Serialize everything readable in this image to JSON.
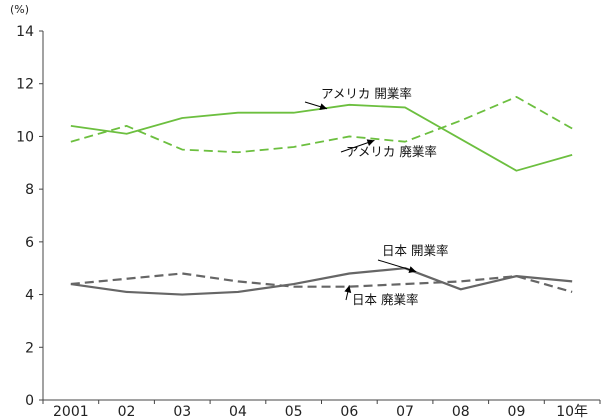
{
  "chart_data": {
    "type": "line",
    "title": "",
    "xlabel": "",
    "ylabel": "",
    "y_unit": "(%)",
    "categories": [
      "2001",
      "02",
      "03",
      "04",
      "05",
      "06",
      "07",
      "08",
      "09",
      "10年"
    ],
    "ylim": [
      0,
      14
    ],
    "yticks": [
      0,
      2,
      4,
      6,
      8,
      10,
      12,
      14
    ],
    "grid": false,
    "legend": "none",
    "series": [
      {
        "name": "アメリカ 開業率",
        "color": "#6cbf3f",
        "dash": "solid",
        "values": [
          10.4,
          10.1,
          10.7,
          10.9,
          10.9,
          11.2,
          11.1,
          9.9,
          8.7,
          9.3
        ]
      },
      {
        "name": "アメリカ 廃業率",
        "color": "#6cbf3f",
        "dash": "dashed",
        "values": [
          9.8,
          10.4,
          9.5,
          9.4,
          9.6,
          10.0,
          9.8,
          10.6,
          11.5,
          10.3
        ]
      },
      {
        "name": "日本 開業率",
        "color": "#666666",
        "dash": "solid",
        "values": [
          4.4,
          4.1,
          4.0,
          4.1,
          4.4,
          4.8,
          5.0,
          4.2,
          4.7,
          4.5
        ]
      },
      {
        "name": "日本 廃業率",
        "color": "#666666",
        "dash": "dashed",
        "values": [
          4.4,
          4.6,
          4.8,
          4.5,
          4.3,
          4.3,
          4.4,
          4.5,
          4.7,
          4.1
        ]
      }
    ],
    "annotations": [
      {
        "text": "アメリカ  開業率",
        "series": 0,
        "target": [
          4.6,
          11.05
        ]
      },
      {
        "text": "アメリカ  廃業率",
        "series": 1,
        "target": [
          5.45,
          9.85
        ]
      },
      {
        "text": "日本  開業率",
        "series": 2,
        "target": [
          6.2,
          4.87
        ]
      },
      {
        "text": "日本  廃業率",
        "series": 3,
        "target": [
          5.0,
          4.35
        ]
      }
    ]
  }
}
